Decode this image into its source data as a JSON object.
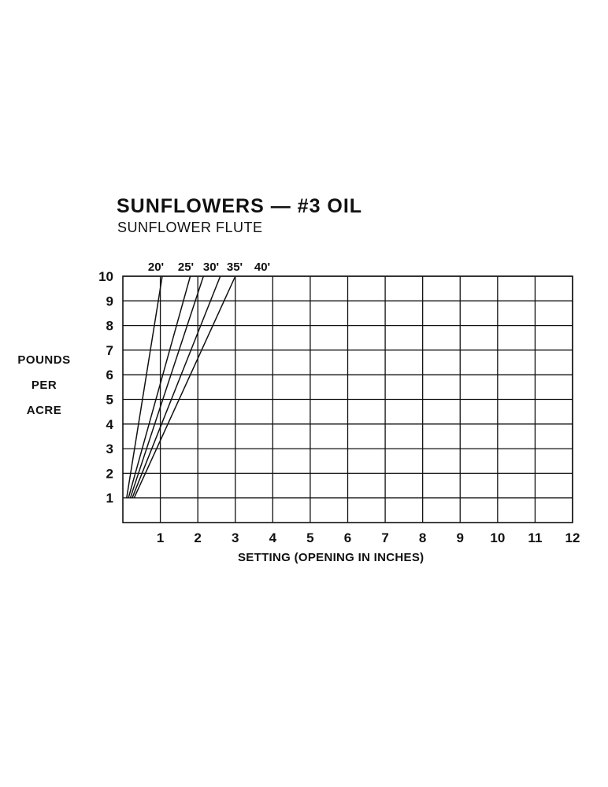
{
  "chart_data": {
    "type": "line",
    "title": "SUNFLOWERS — #3 OIL",
    "subtitle": "SUNFLOWER FLUTE",
    "ylabel": [
      "POUNDS",
      "PER",
      "ACRE"
    ],
    "xlabel": "SETTING (OPENING IN INCHES)",
    "xlim": [
      0,
      12
    ],
    "ylim": [
      0,
      10
    ],
    "xticks": [
      1,
      2,
      3,
      4,
      5,
      6,
      7,
      8,
      9,
      10,
      11,
      12
    ],
    "yticks": [
      1,
      2,
      3,
      4,
      5,
      6,
      7,
      8,
      9,
      10
    ],
    "grid": true,
    "series": [
      {
        "name": "20'",
        "points": [
          [
            0.1,
            1
          ],
          [
            1.05,
            10
          ]
        ]
      },
      {
        "name": "25'",
        "points": [
          [
            0.15,
            1
          ],
          [
            1.8,
            10
          ]
        ]
      },
      {
        "name": "30'",
        "points": [
          [
            0.2,
            1
          ],
          [
            2.15,
            10
          ]
        ]
      },
      {
        "name": "35'",
        "points": [
          [
            0.25,
            1
          ],
          [
            2.6,
            10
          ]
        ]
      },
      {
        "name": "40'",
        "points": [
          [
            0.3,
            1
          ],
          [
            3.0,
            10
          ]
        ]
      }
    ]
  }
}
